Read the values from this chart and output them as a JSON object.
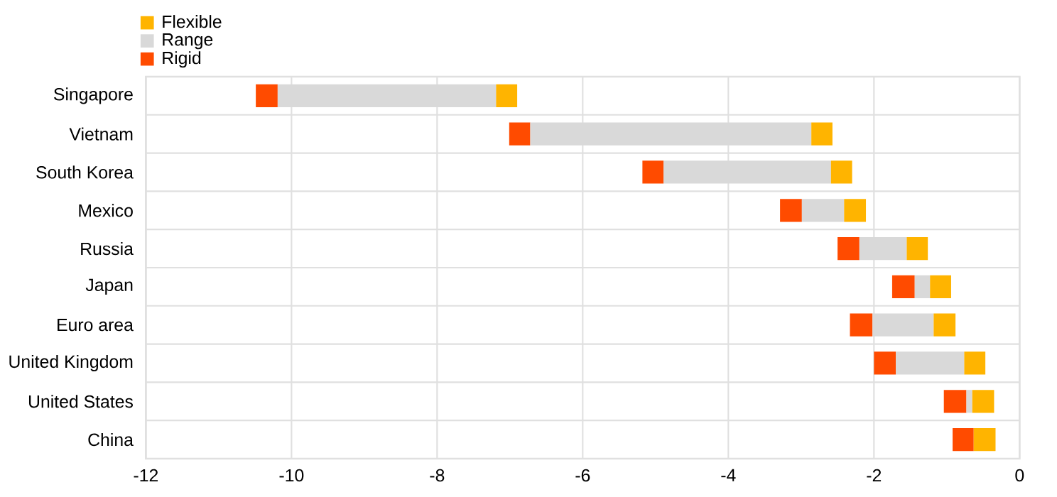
{
  "chart_data": {
    "type": "bar",
    "orientation": "horizontal",
    "categories": [
      "Singapore",
      "Vietnam",
      "South Korea",
      "Mexico",
      "Russia",
      "Japan",
      "Euro area",
      "United Kingdom",
      "United States",
      "China"
    ],
    "series": [
      {
        "name": "Rigid",
        "color": "#ff4b00",
        "base": [
          -10.49,
          -7.01,
          -5.18,
          -3.29,
          -2.5,
          -1.75,
          -2.33,
          -2.0,
          -1.04,
          -0.92
        ],
        "values": [
          0.3,
          0.29,
          0.29,
          0.3,
          0.3,
          0.31,
          0.31,
          0.3,
          0.31,
          0.29
        ]
      },
      {
        "name": "Range",
        "color": "#d9d9d9",
        "base": [
          -10.19,
          -6.72,
          -4.89,
          -2.99,
          -2.2,
          -1.44,
          -2.02,
          -1.7,
          -0.73,
          null
        ],
        "values": [
          3.0,
          3.86,
          2.3,
          0.58,
          0.65,
          0.21,
          0.84,
          0.94,
          0.08,
          null
        ]
      },
      {
        "name": "Flexible",
        "color": "#ffb400",
        "base": [
          -7.19,
          -2.86,
          -2.59,
          -2.41,
          -1.55,
          -1.23,
          -1.18,
          -0.76,
          -0.65,
          -0.63
        ],
        "values": [
          0.29,
          0.29,
          0.29,
          0.3,
          0.29,
          0.29,
          0.3,
          0.29,
          0.3,
          0.3
        ]
      }
    ],
    "xlim": [
      -12,
      0
    ],
    "xticks": [
      -12,
      -10,
      -8,
      -6,
      -4,
      -2,
      0
    ],
    "grid": true,
    "legend": "top left"
  }
}
